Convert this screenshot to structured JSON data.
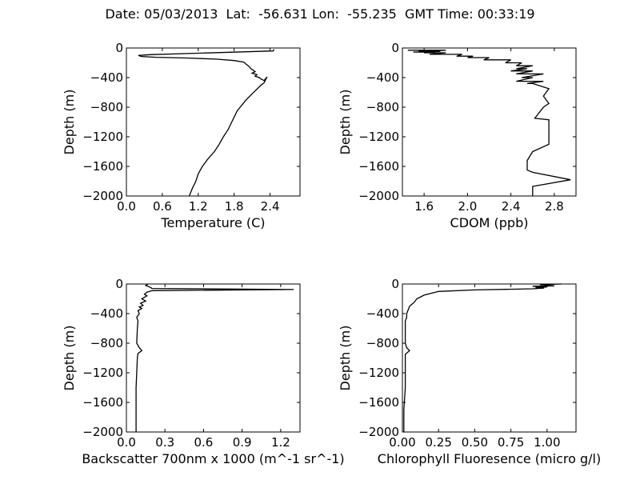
{
  "title": "Date: 05/03/2013  Lat:  -56.631 Lon:  -55.235  GMT Time: 00:33:19",
  "chart_data": [
    {
      "type": "line",
      "name": "temperature-panel",
      "xlabel": "Temperature (C)",
      "ylabel": "Depth (m)",
      "xlim": [
        0.0,
        2.9
      ],
      "ylim": [
        -2000,
        0
      ],
      "xticks": [
        0.0,
        0.6,
        1.2,
        1.8,
        2.4
      ],
      "xtick_labels": [
        "0.0",
        "0.6",
        "1.2",
        "1.8",
        "2.4"
      ],
      "yticks": [
        0,
        -400,
        -800,
        -1200,
        -1600,
        -2000
      ],
      "ytick_labels": [
        "0",
        "−400",
        "−800",
        "−1200",
        "−1600",
        "−2000"
      ],
      "grid": false,
      "series": [
        {
          "x": [
            2.47,
            2.45,
            1.2,
            0.4,
            0.2,
            0.25,
            0.5,
            1.0,
            1.5,
            1.8,
            1.96,
            2.0,
            2.05,
            2.08,
            2.12,
            2.15,
            2.1,
            2.18,
            2.15,
            2.22,
            2.25,
            2.3,
            2.35,
            2.3,
            2.25,
            2.2,
            2.15,
            2.1,
            2.05,
            2.0,
            1.95,
            1.9,
            1.85,
            1.82,
            1.76,
            1.7,
            1.62,
            1.55,
            1.47,
            1.36,
            1.27,
            1.2,
            1.16,
            1.1,
            1.05
          ],
          "y": [
            -20,
            -40,
            -70,
            -90,
            -100,
            -115,
            -125,
            -135,
            -150,
            -170,
            -190,
            -220,
            -250,
            -280,
            -300,
            -320,
            -340,
            -360,
            -380,
            -400,
            -420,
            -440,
            -390,
            -470,
            -500,
            -540,
            -580,
            -620,
            -660,
            -700,
            -750,
            -800,
            -850,
            -900,
            -1000,
            -1100,
            -1200,
            -1300,
            -1400,
            -1500,
            -1600,
            -1700,
            -1800,
            -1900,
            -2000
          ]
        }
      ]
    },
    {
      "type": "line",
      "name": "cdom-panel",
      "xlabel": "CDOM (ppb)",
      "ylabel": "Depth (m)",
      "xlim": [
        1.4,
        3.0
      ],
      "ylim": [
        -2000,
        0
      ],
      "xticks": [
        1.6,
        2.0,
        2.4,
        2.8
      ],
      "xtick_labels": [
        "1.6",
        "2.0",
        "2.4",
        "2.8"
      ],
      "yticks": [
        0,
        -400,
        -800,
        -1200,
        -1600,
        -2000
      ],
      "ytick_labels": [
        "0",
        "−400",
        "−800",
        "−1200",
        "−1600",
        "−2000"
      ],
      "grid": false,
      "series": [
        {
          "x": [
            1.45,
            1.8,
            1.55,
            1.75,
            1.5,
            1.7,
            1.6,
            1.8,
            1.65,
            1.95,
            1.9,
            2.05,
            2.0,
            2.2,
            2.15,
            2.4,
            2.35,
            2.5,
            2.45,
            2.6,
            2.45,
            2.55,
            2.4,
            2.6,
            2.45,
            2.7,
            2.5,
            2.6,
            2.45,
            2.7,
            2.55,
            2.6,
            2.75,
            2.7,
            2.75,
            2.7,
            2.62,
            2.75,
            2.75,
            2.6,
            2.55,
            2.55,
            2.6,
            2.95,
            2.6,
            2.6
          ],
          "y": [
            -30,
            -30,
            -45,
            -45,
            -55,
            -55,
            -65,
            -65,
            -85,
            -85,
            -110,
            -110,
            -130,
            -130,
            -160,
            -160,
            -200,
            -200,
            -240,
            -240,
            -280,
            -280,
            -310,
            -310,
            -350,
            -350,
            -400,
            -400,
            -450,
            -450,
            -480,
            -480,
            -550,
            -650,
            -750,
            -800,
            -950,
            -970,
            -1300,
            -1400,
            -1520,
            -1650,
            -1680,
            -1780,
            -1870,
            -2000
          ]
        }
      ]
    },
    {
      "type": "line",
      "name": "backscatter-panel",
      "xlabel": "Backscatter 700nm x 1000 (m^-1 sr^-1)",
      "ylabel": "Depth (m)",
      "xlim": [
        0.0,
        1.35
      ],
      "ylim": [
        -2000,
        0
      ],
      "xticks": [
        0.0,
        0.3,
        0.6,
        0.9,
        1.2
      ],
      "xtick_labels": [
        "0.0",
        "0.3",
        "0.6",
        "0.9",
        "1.2"
      ],
      "yticks": [
        0,
        -400,
        -800,
        -1200,
        -1600,
        -2000
      ],
      "ytick_labels": [
        "0",
        "−400",
        "−800",
        "−1200",
        "−1600",
        "−2000"
      ],
      "grid": false,
      "series": [
        {
          "x": [
            0.17,
            0.15,
            0.18,
            0.2,
            1.3,
            0.2,
            0.16,
            0.14,
            0.16,
            0.12,
            0.15,
            0.11,
            0.13,
            0.1,
            0.12,
            0.09,
            0.1,
            0.08,
            0.09,
            0.085,
            0.08,
            0.1,
            0.12,
            0.09,
            0.085,
            0.08,
            0.075,
            0.075,
            0.075
          ],
          "y": [
            0,
            -20,
            -40,
            -60,
            -75,
            -90,
            -110,
            -140,
            -160,
            -200,
            -230,
            -260,
            -290,
            -310,
            -330,
            -360,
            -400,
            -450,
            -500,
            -600,
            -800,
            -860,
            -900,
            -940,
            -1000,
            -1200,
            -1400,
            -1700,
            -2000
          ]
        }
      ]
    },
    {
      "type": "line",
      "name": "chlorophyll-panel",
      "xlabel": "Chlorophyll Fluoresence (micro g/l)",
      "ylabel": "Depth (m)",
      "xlim": [
        0.0,
        1.2
      ],
      "ylim": [
        -2000,
        0
      ],
      "xticks": [
        0.0,
        0.25,
        0.5,
        0.75,
        1.0
      ],
      "xtick_labels": [
        "0.00",
        "0.25",
        "0.50",
        "0.75",
        "1.00"
      ],
      "yticks": [
        0,
        -400,
        -800,
        -1200,
        -1600,
        -2000
      ],
      "ytick_labels": [
        "0",
        "−400",
        "−800",
        "−1200",
        "−1600",
        "−2000"
      ],
      "grid": false,
      "series": [
        {
          "x": [
            1.1,
            0.95,
            1.05,
            0.9,
            1.0,
            0.92,
            0.98,
            0.9,
            0.5,
            0.25,
            0.15,
            0.1,
            0.08,
            0.05,
            0.04,
            0.03,
            0.03,
            0.02,
            0.02,
            0.03,
            0.05,
            0.02,
            0.02,
            0.02,
            0.01,
            0.01,
            0.01
          ],
          "y": [
            0,
            -10,
            -25,
            -30,
            -40,
            -50,
            -55,
            -65,
            -80,
            -100,
            -150,
            -200,
            -250,
            -300,
            -350,
            -400,
            -450,
            -500,
            -800,
            -860,
            -900,
            -950,
            -1000,
            -1400,
            -1700,
            -1900,
            -2000
          ]
        }
      ]
    }
  ]
}
